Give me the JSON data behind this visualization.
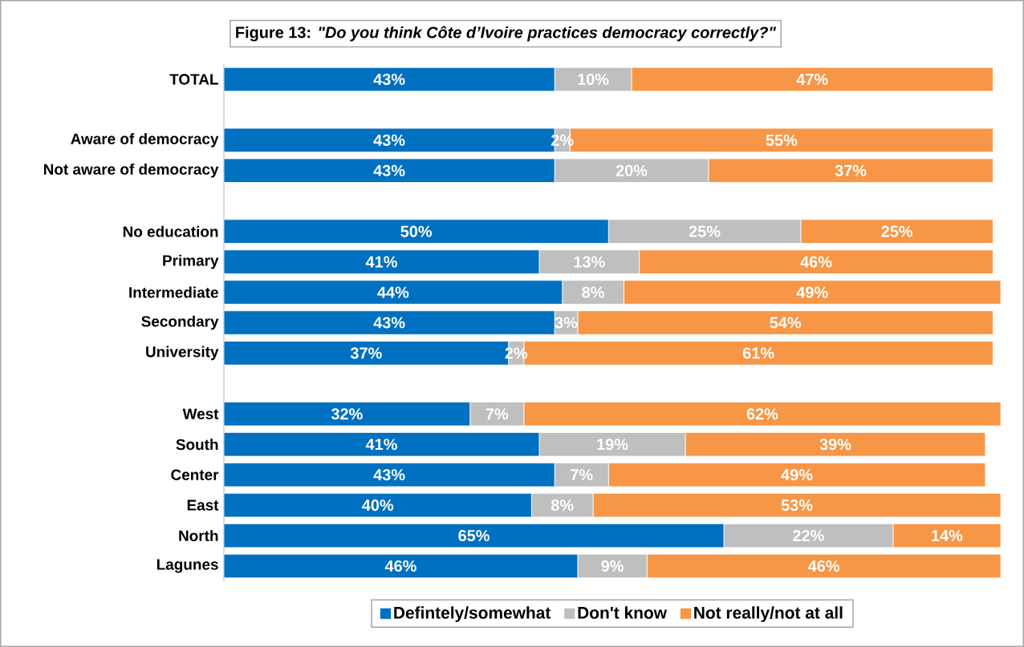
{
  "chart_data": {
    "type": "bar",
    "orientation": "horizontal",
    "stacked": true,
    "title": "Figure 13: *\"Do you think Côte d’Ivoire practices democracy correctly?\"*",
    "categories": [
      "TOTAL",
      null,
      "Aware of democracy",
      "Not aware of democracy",
      null,
      "No education",
      "Primary",
      "Intermediate",
      "Secondary",
      "University",
      null,
      "West",
      "South",
      "Center",
      "East",
      "North",
      "Lagunes"
    ],
    "series": [
      {
        "name": "Defintely/somewhat",
        "color": "#0070c0",
        "values": [
          43,
          null,
          43,
          43,
          null,
          50,
          41,
          44,
          43,
          37,
          null,
          32,
          41,
          43,
          40,
          65,
          46
        ],
        "value_labels": [
          "43%",
          null,
          "43%",
          "43%",
          null,
          "50%",
          "41%",
          "44%",
          "43%",
          "37%",
          null,
          "32%",
          "41%",
          "43%",
          "40%",
          "65%",
          "46%"
        ]
      },
      {
        "name": "Don't know",
        "color": "#bfbfbf",
        "values": [
          10,
          null,
          2,
          20,
          null,
          25,
          13,
          8,
          3,
          2,
          null,
          7,
          19,
          7,
          8,
          22,
          9
        ],
        "value_labels": [
          "10%",
          null,
          "2%",
          "20%",
          null,
          "25%",
          "13%",
          "8%",
          "3%",
          "2%",
          null,
          "7%",
          "19%",
          "7%",
          "8%",
          "22%",
          "9%"
        ]
      },
      {
        "name": "Not really/not at all",
        "color": "#f79646",
        "values": [
          47,
          null,
          55,
          37,
          null,
          25,
          46,
          49,
          54,
          61,
          null,
          62,
          39,
          49,
          53,
          14,
          46
        ],
        "value_labels": [
          "47%",
          null,
          "55%",
          "37%",
          null,
          "25%",
          "46%",
          "49%",
          "54%",
          "61%",
          null,
          "62%",
          "39%",
          "49%",
          "53%",
          "14%",
          "46%"
        ]
      }
    ],
    "legend": "bottom"
  }
}
